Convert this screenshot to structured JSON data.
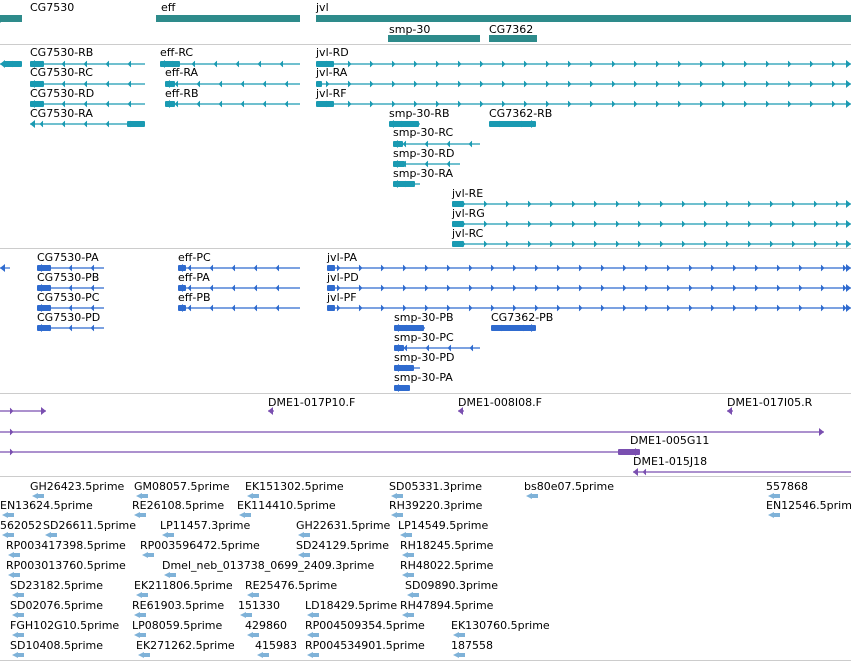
{
  "colors": {
    "gene": "#2e8b8b",
    "transcript": "#1a9ab2",
    "protein": "#2f6bcf",
    "clone": "#7a4fb0",
    "est": "#7fb2d8",
    "separator": "#cccccc"
  },
  "tracks": {
    "genes": {
      "features": [
        {
          "label": "CG7530",
          "strand": "-"
        },
        {
          "label": "eff",
          "strand": "-"
        },
        {
          "label": "jvl",
          "strand": "+"
        },
        {
          "label": "smp-30",
          "strand": "-"
        },
        {
          "label": "CG7362",
          "strand": "+"
        }
      ]
    },
    "transcripts": {
      "features": [
        {
          "label": "",
          "strand": "-"
        },
        {
          "label": "CG7530-RB",
          "strand": "-"
        },
        {
          "label": "CG7530-RC",
          "strand": "-"
        },
        {
          "label": "CG7530-RD",
          "strand": "-"
        },
        {
          "label": "CG7530-RA",
          "strand": "-"
        },
        {
          "label": "eff-RC",
          "strand": "-"
        },
        {
          "label": "eff-RA",
          "strand": "-"
        },
        {
          "label": "eff-RB",
          "strand": "-"
        },
        {
          "label": "jvl-RD",
          "strand": "+"
        },
        {
          "label": "jvl-RA",
          "strand": "+"
        },
        {
          "label": "jvl-RF",
          "strand": "+"
        },
        {
          "label": "smp-30-RB",
          "strand": "-"
        },
        {
          "label": "smp-30-RC",
          "strand": "-"
        },
        {
          "label": "smp-30-RD",
          "strand": "-"
        },
        {
          "label": "smp-30-RA",
          "strand": "-"
        },
        {
          "label": "CG7362-RB",
          "strand": "+"
        },
        {
          "label": "jvl-RE",
          "strand": "+"
        },
        {
          "label": "jvl-RG",
          "strand": "+"
        },
        {
          "label": "jvl-RC",
          "strand": "+"
        }
      ]
    },
    "proteins": {
      "features": [
        {
          "label": "",
          "strand": "-"
        },
        {
          "label": "CG7530-PA",
          "strand": "-"
        },
        {
          "label": "CG7530-PB",
          "strand": "-"
        },
        {
          "label": "CG7530-PC",
          "strand": "-"
        },
        {
          "label": "CG7530-PD",
          "strand": "-"
        },
        {
          "label": "eff-PC",
          "strand": "-"
        },
        {
          "label": "eff-PA",
          "strand": "-"
        },
        {
          "label": "eff-PB",
          "strand": "-"
        },
        {
          "label": "jvl-PA",
          "strand": "+"
        },
        {
          "label": "jvl-PD",
          "strand": "+"
        },
        {
          "label": "jvl-PF",
          "strand": "+"
        },
        {
          "label": "smp-30-PB",
          "strand": "-"
        },
        {
          "label": "CG7362-PB",
          "strand": "+"
        },
        {
          "label": "smp-30-PC",
          "strand": "-"
        },
        {
          "label": "smp-30-PD",
          "strand": "-"
        },
        {
          "label": "smp-30-PA",
          "strand": "-"
        }
      ]
    },
    "clones": {
      "features": [
        {
          "label": "",
          "strand": "+"
        },
        {
          "label": "DME1-017P10.F",
          "strand": "-"
        },
        {
          "label": "DME1-008I08.F",
          "strand": "-"
        },
        {
          "label": "DME1-017I05.R",
          "strand": "-"
        },
        {
          "label": "",
          "strand": "+"
        },
        {
          "label": "DME1-005G11",
          "strand": "+"
        },
        {
          "label": "",
          "strand": "+"
        },
        {
          "label": "DME1-015J18",
          "strand": "-"
        }
      ]
    },
    "ests": {
      "features": [
        {
          "label": "GH26423.5prime"
        },
        {
          "label": "GM08057.5prime"
        },
        {
          "label": "EK151302.5prime"
        },
        {
          "label": "SD05331.3prime"
        },
        {
          "label": "bs80e07.5prime"
        },
        {
          "label": "557868"
        },
        {
          "label": "EN13624.5prime"
        },
        {
          "label": "RE26108.5prime"
        },
        {
          "label": "EK114410.5prime"
        },
        {
          "label": "RH39220.3prime"
        },
        {
          "label": "EN12546.5prime"
        },
        {
          "label": "562052"
        },
        {
          "label": "SD26611.5prime"
        },
        {
          "label": "LP11457.3prime"
        },
        {
          "label": "GH22631.5prime"
        },
        {
          "label": "LP14549.5prime"
        },
        {
          "label": "RP003417398.5prime"
        },
        {
          "label": "RP003596472.5prime"
        },
        {
          "label": "SD24129.5prime"
        },
        {
          "label": "RH18245.5prime"
        },
        {
          "label": "RP003013760.5prime"
        },
        {
          "label": "Dmel_neb_013738_0699_2409.3prime"
        },
        {
          "label": "RH48022.5prime"
        },
        {
          "label": "SD23182.5prime"
        },
        {
          "label": "EK211806.5prime"
        },
        {
          "label": "RE25476.5prime"
        },
        {
          "label": "SD09890.3prime"
        },
        {
          "label": "SD02076.5prime"
        },
        {
          "label": "RE61903.5prime"
        },
        {
          "label": "151330"
        },
        {
          "label": "LD18429.5prime"
        },
        {
          "label": "RH47894.5prime"
        },
        {
          "label": "FGH102G10.5prime"
        },
        {
          "label": "LP08059.5prime"
        },
        {
          "label": "429860"
        },
        {
          "label": "RP004509354.5prime"
        },
        {
          "label": "EK130760.5prime"
        },
        {
          "label": "SD10408.5prime"
        },
        {
          "label": "EK271262.5prime"
        },
        {
          "label": "415983"
        },
        {
          "label": "RP004534901.5prime"
        },
        {
          "label": "187558"
        }
      ]
    }
  }
}
